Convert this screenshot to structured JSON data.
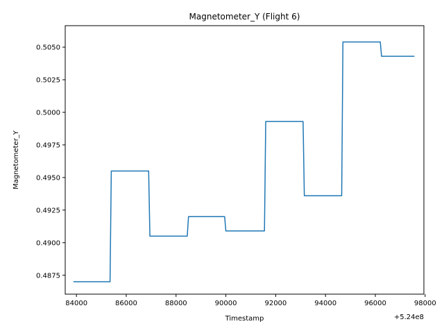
{
  "chart_data": {
    "type": "line",
    "title": "Magnetometer_Y (Flight 6)",
    "xlabel": "Timestamp",
    "ylabel": "Magnetometer_Y",
    "x_offset_label": "+5.24e8",
    "xlim": [
      83550,
      97950
    ],
    "ylim": [
      0.48605,
      0.50665
    ],
    "x_ticks": [
      84000,
      86000,
      88000,
      90000,
      92000,
      94000,
      96000,
      98000
    ],
    "x_tick_labels": [
      "84000",
      "86000",
      "88000",
      "90000",
      "92000",
      "94000",
      "96000",
      "98000"
    ],
    "y_ticks": [
      0.4875,
      0.49,
      0.4925,
      0.495,
      0.4975,
      0.5,
      0.5025,
      0.505
    ],
    "y_tick_labels": [
      "0.4875",
      "0.4900",
      "0.4925",
      "0.4950",
      "0.4975",
      "0.5000",
      "0.5025",
      "0.5050"
    ],
    "grid": false,
    "series": [
      {
        "color": "#1f77b4",
        "x": [
          83900,
          85350,
          85400,
          86900,
          86950,
          88450,
          88500,
          89950,
          90000,
          91550,
          91600,
          93100,
          93150,
          94650,
          94700,
          96200,
          96250,
          97550
        ],
        "y": [
          0.487,
          0.487,
          0.4955,
          0.4955,
          0.4905,
          0.4905,
          0.492,
          0.492,
          0.4909,
          0.4909,
          0.4993,
          0.4993,
          0.4936,
          0.4936,
          0.5054,
          0.5054,
          0.5043,
          0.5043
        ]
      }
    ]
  }
}
